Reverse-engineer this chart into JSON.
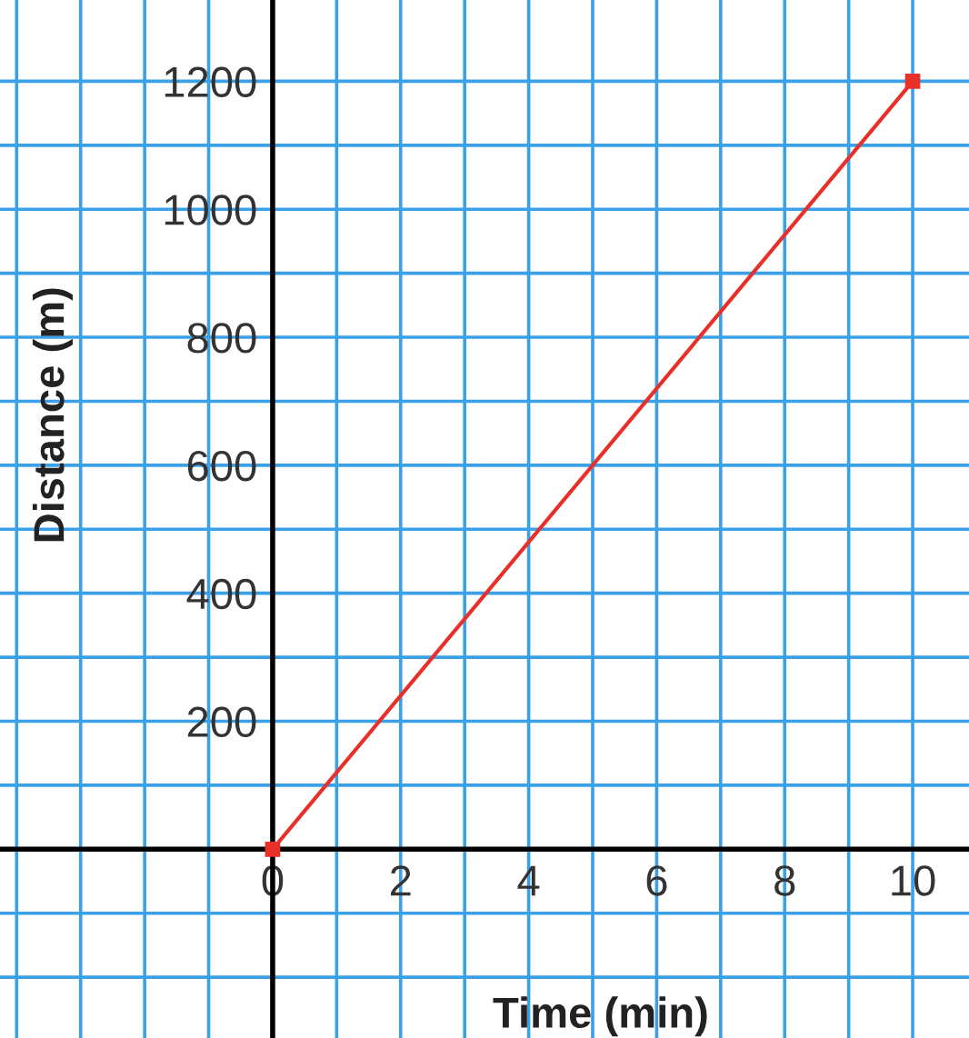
{
  "chart_data": {
    "type": "line",
    "xlabel": "Time (min)",
    "ylabel": "Distance (m)",
    "x": [
      0,
      10
    ],
    "series": [
      {
        "color": "#e8302a",
        "values": [
          0,
          1200
        ]
      }
    ],
    "marker": "square",
    "line_style": "solid",
    "grid": true,
    "xlim": [
      -4.26,
      10.88
    ],
    "ylim": [
      -295,
      1327
    ],
    "xticks": [
      {
        "value": -4,
        "label": null
      },
      {
        "value": -3,
        "label": null
      },
      {
        "value": -2,
        "label": null
      },
      {
        "value": -1,
        "label": null
      },
      0,
      {
        "value": 1,
        "label": null
      },
      2,
      {
        "value": 3,
        "label": null
      },
      4,
      {
        "value": 5,
        "label": null
      },
      6,
      {
        "value": 7,
        "label": null
      },
      8,
      {
        "value": 9,
        "label": null
      },
      10
    ],
    "yticks": [
      {
        "value": -200,
        "label": null
      },
      {
        "value": -100,
        "label": null
      },
      {
        "value": 0,
        "label": null
      },
      {
        "value": 100,
        "label": null
      },
      200,
      {
        "value": 300,
        "label": null
      },
      400,
      {
        "value": 500,
        "label": null
      },
      600,
      {
        "value": 700,
        "label": null
      },
      800,
      {
        "value": 900,
        "label": null
      },
      1000,
      {
        "value": 1100,
        "label": null
      },
      1200
    ]
  }
}
